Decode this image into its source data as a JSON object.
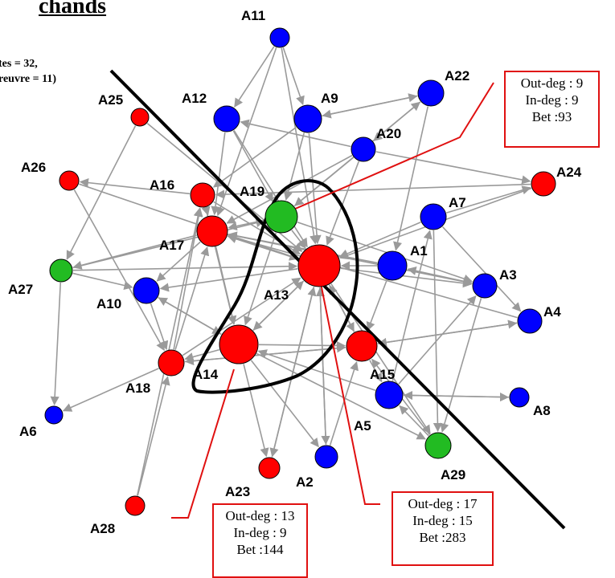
{
  "title": "chands",
  "note_lines": [
    "tes = 32,",
    "reuvre = 11)"
  ],
  "colors": {
    "red": "#ff0000",
    "blue": "#0000ff",
    "green": "#22bb22",
    "edge": "#9a9a9a",
    "annotation": "#e01010"
  },
  "nodes": [
    {
      "id": "A1",
      "color": "blue"
    },
    {
      "id": "A2",
      "color": "blue"
    },
    {
      "id": "A3",
      "color": "blue"
    },
    {
      "id": "A4",
      "color": "blue"
    },
    {
      "id": "A5",
      "color": "blue"
    },
    {
      "id": "A6",
      "color": "blue"
    },
    {
      "id": "A7",
      "color": "blue"
    },
    {
      "id": "A8",
      "color": "blue"
    },
    {
      "id": "A9",
      "color": "blue"
    },
    {
      "id": "A10",
      "color": "blue"
    },
    {
      "id": "A11",
      "color": "blue"
    },
    {
      "id": "A12",
      "color": "blue"
    },
    {
      "id": "A13",
      "color": "red"
    },
    {
      "id": "A14",
      "color": "red"
    },
    {
      "id": "A15",
      "color": "red"
    },
    {
      "id": "A16",
      "color": "red"
    },
    {
      "id": "A17",
      "color": "red"
    },
    {
      "id": "A18",
      "color": "red"
    },
    {
      "id": "A19",
      "color": "green"
    },
    {
      "id": "A20",
      "color": "blue"
    },
    {
      "id": "A22",
      "color": "blue"
    },
    {
      "id": "A23",
      "color": "red"
    },
    {
      "id": "A24",
      "color": "red"
    },
    {
      "id": "A25",
      "color": "red"
    },
    {
      "id": "A26",
      "color": "red"
    },
    {
      "id": "A27",
      "color": "green"
    },
    {
      "id": "A28",
      "color": "red"
    },
    {
      "id": "A29",
      "color": "green"
    }
  ],
  "edges": [
    [
      "A11",
      "A12"
    ],
    [
      "A11",
      "A9"
    ],
    [
      "A11",
      "A13"
    ],
    [
      "A11",
      "A17"
    ],
    [
      "A12",
      "A13"
    ],
    [
      "A12",
      "A17"
    ],
    [
      "A9",
      "A16"
    ],
    [
      "A9",
      "A13"
    ],
    [
      "A9",
      "A22"
    ],
    [
      "A20",
      "A12"
    ],
    [
      "A20",
      "A17"
    ],
    [
      "A20",
      "A24"
    ],
    [
      "A20",
      "A13"
    ],
    [
      "A22",
      "A9"
    ],
    [
      "A22",
      "A1"
    ],
    [
      "A22",
      "A20"
    ],
    [
      "A20",
      "A19"
    ],
    [
      "A16",
      "A26"
    ],
    [
      "A16",
      "A13"
    ],
    [
      "A16",
      "A14"
    ],
    [
      "A17",
      "A10"
    ],
    [
      "A17",
      "A27"
    ],
    [
      "A17",
      "A13"
    ],
    [
      "A17",
      "A3"
    ],
    [
      "A19",
      "A13"
    ],
    [
      "A19",
      "A14"
    ],
    [
      "A19",
      "A17"
    ],
    [
      "A19",
      "A22"
    ],
    [
      "A19",
      "A3"
    ],
    [
      "A13",
      "A17"
    ],
    [
      "A13",
      "A10"
    ],
    [
      "A13",
      "A14"
    ],
    [
      "A13",
      "A15"
    ],
    [
      "A13",
      "A2"
    ],
    [
      "A13",
      "A23"
    ],
    [
      "A13",
      "A29"
    ],
    [
      "A13",
      "A3"
    ],
    [
      "A1",
      "A13"
    ],
    [
      "A1",
      "A15"
    ],
    [
      "A1",
      "A17"
    ],
    [
      "A7",
      "A13"
    ],
    [
      "A7",
      "A4"
    ],
    [
      "A7",
      "A29"
    ],
    [
      "A7",
      "A24"
    ],
    [
      "A24",
      "A16"
    ],
    [
      "A24",
      "A13"
    ],
    [
      "A3",
      "A1"
    ],
    [
      "A3",
      "A29"
    ],
    [
      "A4",
      "A17"
    ],
    [
      "A4",
      "A15"
    ],
    [
      "A15",
      "A18"
    ],
    [
      "A15",
      "A13"
    ],
    [
      "A15",
      "A5"
    ],
    [
      "A15",
      "A4"
    ],
    [
      "A5",
      "A14"
    ],
    [
      "A5",
      "A8"
    ],
    [
      "A5",
      "A3"
    ],
    [
      "A5",
      "A7"
    ],
    [
      "A29",
      "A15"
    ],
    [
      "A29",
      "A5"
    ],
    [
      "A8",
      "A5"
    ],
    [
      "A14",
      "A10"
    ],
    [
      "A14",
      "A18"
    ],
    [
      "A14",
      "A2"
    ],
    [
      "A14",
      "A23"
    ],
    [
      "A14",
      "A13"
    ],
    [
      "A14",
      "A15"
    ],
    [
      "A14",
      "A29"
    ],
    [
      "A10",
      "A18"
    ],
    [
      "A10",
      "A14"
    ],
    [
      "A18",
      "A6"
    ],
    [
      "A18",
      "A13"
    ],
    [
      "A18",
      "A17"
    ],
    [
      "A18",
      "A16"
    ],
    [
      "A18",
      "A15"
    ],
    [
      "A23",
      "A13"
    ],
    [
      "A2",
      "A13"
    ],
    [
      "A2",
      "A15"
    ],
    [
      "A28",
      "A16"
    ],
    [
      "A28",
      "A18"
    ],
    [
      "A27",
      "A10"
    ],
    [
      "A27",
      "A19"
    ],
    [
      "A27",
      "A13"
    ],
    [
      "A27",
      "A6"
    ],
    [
      "A25",
      "A13"
    ],
    [
      "A25",
      "A27"
    ],
    [
      "A26",
      "A13"
    ],
    [
      "A26",
      "A18"
    ],
    [
      "A12",
      "A19"
    ],
    [
      "A9",
      "A19"
    ],
    [
      "A16",
      "A17"
    ],
    [
      "A17",
      "A14"
    ]
  ],
  "callouts": [
    {
      "target": "A19",
      "lines": [
        "Out-deg : 9",
        "In-deg : 9",
        "Bet :93"
      ]
    },
    {
      "target": "A14",
      "lines": [
        "Out-deg : 13",
        "In-deg : 9",
        "Bet :144"
      ]
    },
    {
      "target": "A13",
      "lines": [
        "Out-deg : 17",
        "In-deg : 15",
        "Bet :283"
      ]
    }
  ]
}
